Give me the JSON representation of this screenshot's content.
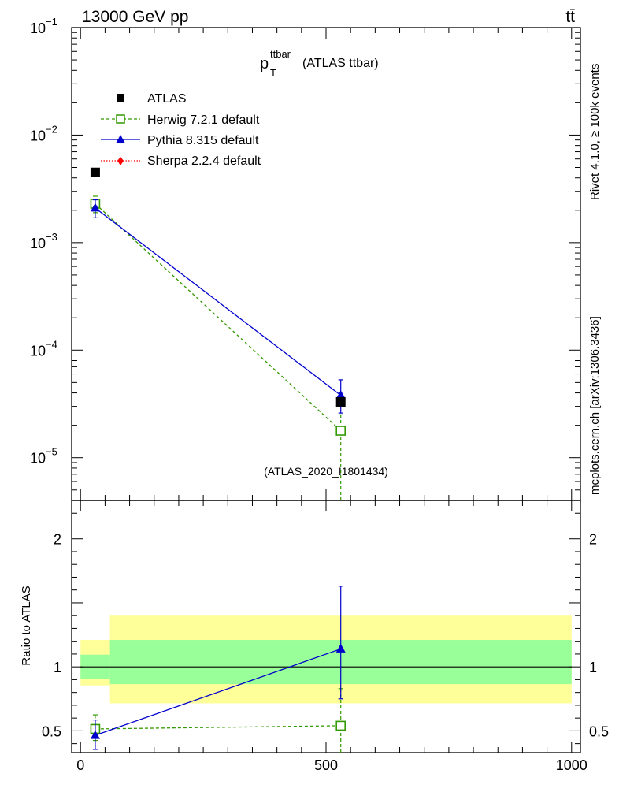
{
  "header": {
    "energy_label": "13000 GeV pp",
    "process_label": "tt̄"
  },
  "side_labels": {
    "rivet": "Rivet 4.1.0, ≥ 100k events",
    "mcplots": "mcplots.cern.ch [arXiv:1306.3436]"
  },
  "chart_data": {
    "type": "scatter",
    "title_main": "p",
    "title_sub": "T",
    "title_sup": "ttbar",
    "title_rest": "(ATLAS ttbar)",
    "watermark": "(ATLAS_2020_I1801434)",
    "xlim": [
      -18,
      1018
    ],
    "x_ticks": [
      "0",
      "500",
      "1000"
    ],
    "main": {
      "yscale": "log",
      "ylim": [
        4e-06,
        0.1
      ],
      "y_ticks": [
        {
          "base": "10",
          "exp": "−1"
        },
        {
          "base": "10",
          "exp": "−2"
        },
        {
          "base": "10",
          "exp": "−3"
        },
        {
          "base": "10",
          "exp": "−4"
        },
        {
          "base": "10",
          "exp": "−5"
        }
      ]
    },
    "ratio": {
      "ylabel": "Ratio to ATLAS",
      "ylim": [
        0.33,
        2.3
      ],
      "y_ticks": [
        "0.5",
        "1",
        "2"
      ]
    },
    "bands": [
      {
        "x0": 0,
        "x1": 60,
        "inner": [
          0.905,
          1.095
        ],
        "outer": [
          0.855,
          1.21
        ]
      },
      {
        "x0": 60,
        "x1": 1000,
        "inner": [
          0.865,
          1.21
        ],
        "outer": [
          0.715,
          1.4
        ]
      }
    ],
    "series": [
      {
        "name": "ATLAS",
        "color": "#000000",
        "marker": "square",
        "x": [
          30,
          530
        ],
        "y": [
          0.0045,
          3.3e-05
        ]
      },
      {
        "name": "Herwig 7.2.1 default",
        "color": "#339900",
        "marker": "open-square",
        "dash": true,
        "x": [
          30,
          530
        ],
        "y": [
          0.0023,
          1.78e-05
        ],
        "err_lo": [
          0.0004,
          1.78e-05
        ],
        "err_hi": [
          0.0004,
          7.2e-06
        ],
        "ratio": [
          0.515,
          0.54
        ],
        "ratio_lo": [
          0.09,
          0.54
        ],
        "ratio_hi": [
          0.11,
          0.29
        ]
      },
      {
        "name": "Pythia 8.315 default",
        "color": "#0000cc",
        "marker": "triangle",
        "x": [
          30,
          530
        ],
        "y": [
          0.0021,
          3.8e-05
        ],
        "err_lo": [
          0.0004,
          1.2e-05
        ],
        "err_hi": [
          0.0004,
          1.5e-05
        ],
        "ratio": [
          0.465,
          1.14
        ],
        "ratio_lo": [
          0.11,
          0.39
        ],
        "ratio_hi": [
          0.12,
          0.49
        ]
      },
      {
        "name": "Sherpa 2.2.4 default",
        "color": "#ff0000",
        "marker": "diamond",
        "dotted": true,
        "x": [],
        "y": []
      }
    ]
  }
}
